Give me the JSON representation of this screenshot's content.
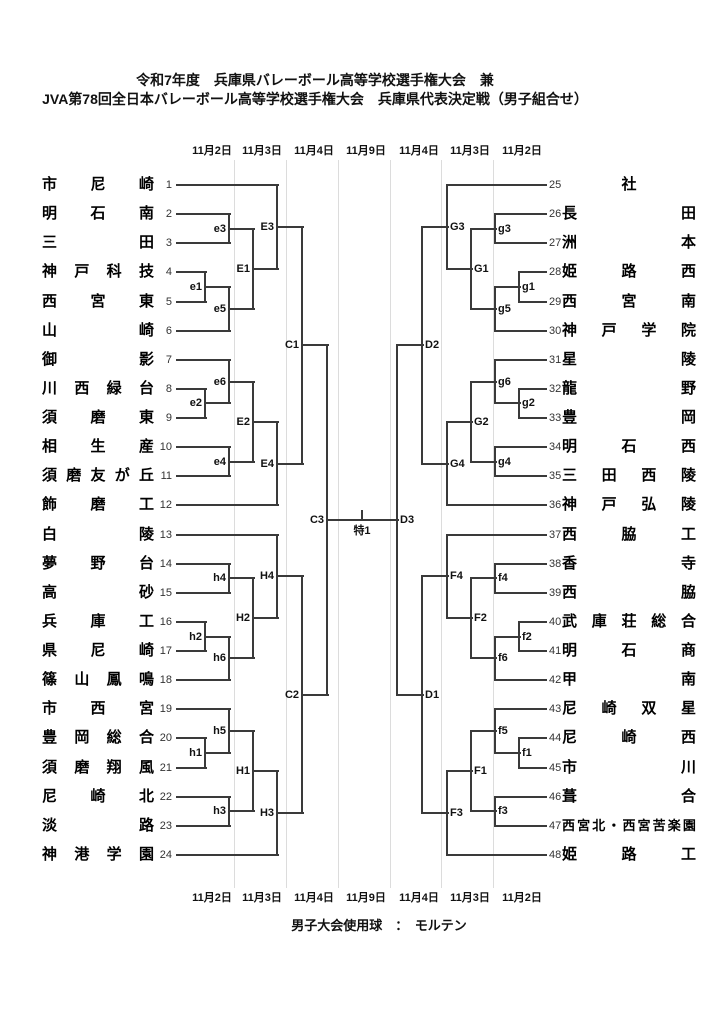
{
  "header": {
    "title_line1": "令和7年度　兵庫県バレーボール高等学校選手権大会　兼",
    "title_line2": "JVA第78回全日本バレーボール高等学校選手権大会　兵庫県代表決定戦（男子組合せ）"
  },
  "columns": {
    "dates": [
      "11月2日",
      "11月3日",
      "11月4日",
      "11月9日",
      "11月4日",
      "11月3日",
      "11月2日"
    ]
  },
  "footer": {
    "text": "男子大会使用球　：　モルテン"
  },
  "bracket": {
    "teams": [
      {
        "seed": 1,
        "name": "市尼崎"
      },
      {
        "seed": 2,
        "name": "明石南"
      },
      {
        "seed": 3,
        "name": "三田"
      },
      {
        "seed": 4,
        "name": "神戸科技"
      },
      {
        "seed": 5,
        "name": "西宮東"
      },
      {
        "seed": 6,
        "name": "山崎"
      },
      {
        "seed": 7,
        "name": "御影"
      },
      {
        "seed": 8,
        "name": "川西緑台"
      },
      {
        "seed": 9,
        "name": "須磨東"
      },
      {
        "seed": 10,
        "name": "相生産"
      },
      {
        "seed": 11,
        "name": "須磨友が丘"
      },
      {
        "seed": 12,
        "name": "飾磨工"
      },
      {
        "seed": 13,
        "name": "白陵"
      },
      {
        "seed": 14,
        "name": "夢野台"
      },
      {
        "seed": 15,
        "name": "高砂"
      },
      {
        "seed": 16,
        "name": "兵庫工"
      },
      {
        "seed": 17,
        "name": "県尼崎"
      },
      {
        "seed": 18,
        "name": "篠山鳳鳴"
      },
      {
        "seed": 19,
        "name": "市西宮"
      },
      {
        "seed": 20,
        "name": "豊岡総合"
      },
      {
        "seed": 21,
        "name": "須磨翔風"
      },
      {
        "seed": 22,
        "name": "尼崎北"
      },
      {
        "seed": 23,
        "name": "淡路"
      },
      {
        "seed": 24,
        "name": "神港学園"
      },
      {
        "seed": 25,
        "name": "社"
      },
      {
        "seed": 26,
        "name": "長田"
      },
      {
        "seed": 27,
        "name": "洲本"
      },
      {
        "seed": 28,
        "name": "姫路西"
      },
      {
        "seed": 29,
        "name": "西宮南"
      },
      {
        "seed": 30,
        "name": "神戸学院"
      },
      {
        "seed": 31,
        "name": "星陵"
      },
      {
        "seed": 32,
        "name": "龍野"
      },
      {
        "seed": 33,
        "name": "豊岡"
      },
      {
        "seed": 34,
        "name": "明石西"
      },
      {
        "seed": 35,
        "name": "三田西陵"
      },
      {
        "seed": 36,
        "name": "神戸弘陵"
      },
      {
        "seed": 37,
        "name": "西脇工"
      },
      {
        "seed": 38,
        "name": "香寺"
      },
      {
        "seed": 39,
        "name": "西脇"
      },
      {
        "seed": 40,
        "name": "武庫荘総合"
      },
      {
        "seed": 41,
        "name": "明石商"
      },
      {
        "seed": 42,
        "name": "甲南"
      },
      {
        "seed": 43,
        "name": "尼崎双星"
      },
      {
        "seed": 44,
        "name": "尼崎西"
      },
      {
        "seed": 45,
        "name": "市川"
      },
      {
        "seed": 46,
        "name": "葺合"
      },
      {
        "seed": 47,
        "name": "西宮北・西宮苦楽園"
      },
      {
        "seed": 48,
        "name": "姫路工"
      }
    ],
    "matches": [
      {
        "id": "e1",
        "side": "left",
        "col": 0,
        "top": "t4",
        "bottom": "t5"
      },
      {
        "id": "e3",
        "side": "left",
        "col": 1,
        "top": "t2",
        "bottom": "t3"
      },
      {
        "id": "e5",
        "side": "left",
        "col": 1,
        "top": "e1",
        "bottom": "t6"
      },
      {
        "id": "e2",
        "side": "left",
        "col": 0,
        "top": "t8",
        "bottom": "t9"
      },
      {
        "id": "e6",
        "side": "left",
        "col": 1,
        "top": "t7",
        "bottom": "e2"
      },
      {
        "id": "e4",
        "side": "left",
        "col": 1,
        "top": "t10",
        "bottom": "t11"
      },
      {
        "id": "E1",
        "side": "left",
        "col": 2,
        "top": "e3",
        "bottom": "e5"
      },
      {
        "id": "E2",
        "side": "left",
        "col": 2,
        "top": "e6",
        "bottom": "e4"
      },
      {
        "id": "E3",
        "side": "left",
        "col": 3,
        "top": "t1",
        "bottom": "E1"
      },
      {
        "id": "E4",
        "side": "left",
        "col": 3,
        "top": "E2",
        "bottom": "t12"
      },
      {
        "id": "C1",
        "side": "left",
        "col": 4,
        "top": "E3",
        "bottom": "E4"
      },
      {
        "id": "h2",
        "side": "left",
        "col": 0,
        "top": "t16",
        "bottom": "t17"
      },
      {
        "id": "h4",
        "side": "left",
        "col": 1,
        "top": "t14",
        "bottom": "t15"
      },
      {
        "id": "h6",
        "side": "left",
        "col": 1,
        "top": "h2",
        "bottom": "t18"
      },
      {
        "id": "h1",
        "side": "left",
        "col": 0,
        "top": "t20",
        "bottom": "t21"
      },
      {
        "id": "h5",
        "side": "left",
        "col": 1,
        "top": "t19",
        "bottom": "h1"
      },
      {
        "id": "h3",
        "side": "left",
        "col": 1,
        "top": "t22",
        "bottom": "t23"
      },
      {
        "id": "H2",
        "side": "left",
        "col": 2,
        "top": "h4",
        "bottom": "h6"
      },
      {
        "id": "H1",
        "side": "left",
        "col": 2,
        "top": "h5",
        "bottom": "h3"
      },
      {
        "id": "H4",
        "side": "left",
        "col": 3,
        "top": "t13",
        "bottom": "H2"
      },
      {
        "id": "H3",
        "side": "left",
        "col": 3,
        "top": "H1",
        "bottom": "t24"
      },
      {
        "id": "C2",
        "side": "left",
        "col": 4,
        "top": "H4",
        "bottom": "H3"
      },
      {
        "id": "C3",
        "side": "left",
        "col": 5,
        "top": "C1",
        "bottom": "C2"
      },
      {
        "id": "g1",
        "side": "right",
        "col": 0,
        "top": "t28",
        "bottom": "t29"
      },
      {
        "id": "g3",
        "side": "right",
        "col": 1,
        "top": "t26",
        "bottom": "t27"
      },
      {
        "id": "g5",
        "side": "right",
        "col": 1,
        "top": "g1",
        "bottom": "t30"
      },
      {
        "id": "g2",
        "side": "right",
        "col": 0,
        "top": "t32",
        "bottom": "t33"
      },
      {
        "id": "g6",
        "side": "right",
        "col": 1,
        "top": "t31",
        "bottom": "g2"
      },
      {
        "id": "g4",
        "side": "right",
        "col": 1,
        "top": "t34",
        "bottom": "t35"
      },
      {
        "id": "G1",
        "side": "right",
        "col": 2,
        "top": "g3",
        "bottom": "g5"
      },
      {
        "id": "G2",
        "side": "right",
        "col": 2,
        "top": "g6",
        "bottom": "g4"
      },
      {
        "id": "G3",
        "side": "right",
        "col": 3,
        "top": "t25",
        "bottom": "G1"
      },
      {
        "id": "G4",
        "side": "right",
        "col": 3,
        "top": "G2",
        "bottom": "t36"
      },
      {
        "id": "D2",
        "side": "right",
        "col": 4,
        "top": "G3",
        "bottom": "G4"
      },
      {
        "id": "f2",
        "side": "right",
        "col": 0,
        "top": "t40",
        "bottom": "t41"
      },
      {
        "id": "f4",
        "side": "right",
        "col": 1,
        "top": "t38",
        "bottom": "t39"
      },
      {
        "id": "f6",
        "side": "right",
        "col": 1,
        "top": "f2",
        "bottom": "t42"
      },
      {
        "id": "f1",
        "side": "right",
        "col": 0,
        "top": "t44",
        "bottom": "t45"
      },
      {
        "id": "f5",
        "side": "right",
        "col": 1,
        "top": "t43",
        "bottom": "f1"
      },
      {
        "id": "f3",
        "side": "right",
        "col": 1,
        "top": "t46",
        "bottom": "t47"
      },
      {
        "id": "F2",
        "side": "right",
        "col": 2,
        "top": "f4",
        "bottom": "f6"
      },
      {
        "id": "F1",
        "side": "right",
        "col": 2,
        "top": "f5",
        "bottom": "f3"
      },
      {
        "id": "F4",
        "side": "right",
        "col": 3,
        "top": "t37",
        "bottom": "F2"
      },
      {
        "id": "F3",
        "side": "right",
        "col": 3,
        "top": "F1",
        "bottom": "t48"
      },
      {
        "id": "D1",
        "side": "right",
        "col": 4,
        "top": "F4",
        "bottom": "F3"
      },
      {
        "id": "D3",
        "side": "right",
        "col": 5,
        "top": "D2",
        "bottom": "D1"
      }
    ],
    "final": {
      "left": "C3",
      "right": "D3",
      "label": "特1"
    }
  }
}
